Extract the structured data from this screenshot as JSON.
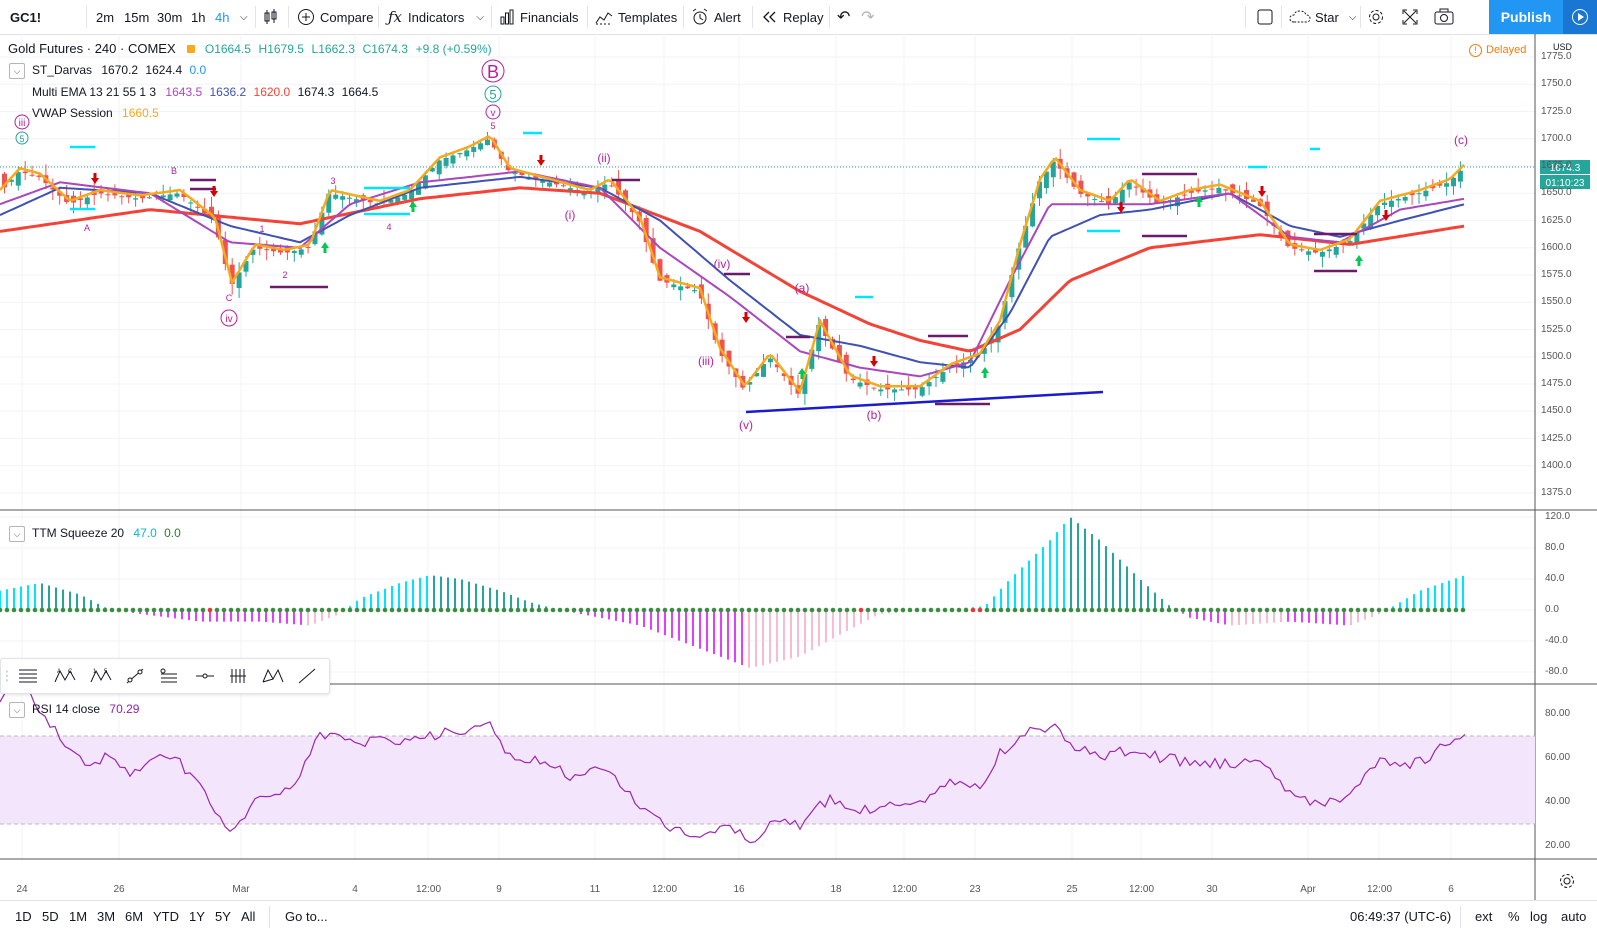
{
  "toolbar": {
    "symbol": "GC1!",
    "intervals": [
      "2m",
      "15m",
      "30m",
      "1h",
      "4h"
    ],
    "active_interval": "4h",
    "compare": "Compare",
    "indicators": "Indicators",
    "financials": "Financials",
    "templates": "Templates",
    "alert": "Alert",
    "replay": "Replay",
    "star": "Star",
    "publish": "Publish"
  },
  "main_legend": {
    "title": "Gold Futures · 240 · COMEX",
    "open": "O1664.5",
    "high": "H1679.5",
    "low": "L1662.3",
    "close": "C1674.3",
    "change": "+9.8 (+0.59%)",
    "delayed": "Delayed",
    "currency": "USD",
    "indicators": [
      {
        "name": "ST_Darvas",
        "values": [
          "1670.2",
          "1624.4",
          "0.0"
        ]
      },
      {
        "name": "Multi EMA 13 21 55 1 3",
        "values": [
          "1643.5",
          "1636.2",
          "1620.0",
          "1674.3",
          "1664.5"
        ]
      },
      {
        "name": "VWAP Session",
        "values": [
          "1660.5"
        ]
      }
    ],
    "price_tag": "1674.3",
    "countdown": "01:10:23"
  },
  "price_axis": [
    "1775.0",
    "1750.0",
    "1725.0",
    "1700.0",
    "1675.0",
    "1650.0",
    "1625.0",
    "1600.0",
    "1575.0",
    "1550.0",
    "1525.0",
    "1500.0",
    "1475.0",
    "1450.0",
    "1425.0",
    "1400.0",
    "1375.0"
  ],
  "waves": {
    "big_B": "B",
    "big_5": "5",
    "top_v": "v",
    "top_5": "5",
    "iii_top": "iii",
    "c_circle": "5",
    "iv_circle": "iv",
    "labels": [
      "(ii)",
      "(i)",
      "(iv)",
      "(iii)",
      "(v)",
      "(a)",
      "(b)",
      "(c)"
    ],
    "small": [
      "A",
      "B",
      "C",
      "1",
      "2",
      "3",
      "4"
    ]
  },
  "ttm": {
    "name": "TTM Squeeze 20",
    "val1": "47.0",
    "val2": "0.0",
    "axis": [
      "120.0",
      "80.0",
      "40.0",
      "0.0",
      "-40.0",
      "-80.0"
    ]
  },
  "rsi": {
    "name": "RSI 14 close",
    "value": "70.29",
    "axis": [
      "80.00",
      "60.00",
      "40.00",
      "20.00"
    ]
  },
  "time_axis": [
    "24",
    "26",
    "Mar",
    "4",
    "12:00",
    "9",
    "11",
    "12:00",
    "16",
    "18",
    "12:00",
    "23",
    "25",
    "12:00",
    "30",
    "Apr",
    "12:00",
    "6"
  ],
  "bottombar": {
    "ranges": [
      "1D",
      "5D",
      "1M",
      "3M",
      "6M",
      "YTD",
      "1Y",
      "5Y",
      "All"
    ],
    "goto": "Go to...",
    "clock": "06:49:37 (UTC-6)",
    "ext": "ext",
    "pct": "%",
    "log": "log",
    "auto": "auto"
  },
  "colors": {
    "up": "#26a69a",
    "down": "#ef5350",
    "ema13": "#ab47bc",
    "ema21": "#3f51b5",
    "ema55": "#f44336",
    "vwap": "#f6a91c",
    "wave": "#b51fa0",
    "cyan": "#00e5ff"
  }
}
